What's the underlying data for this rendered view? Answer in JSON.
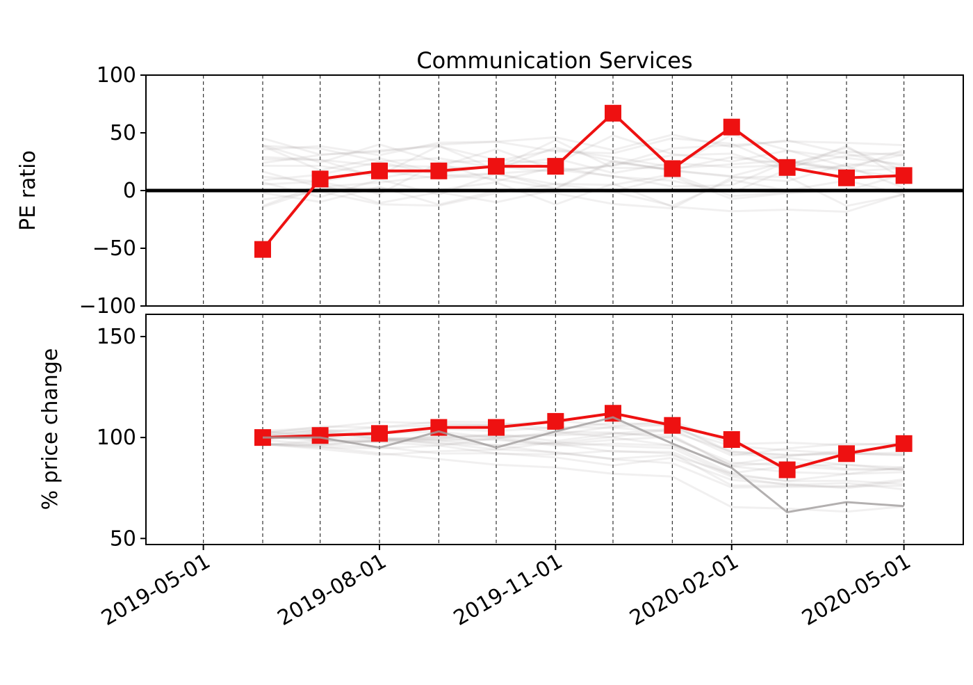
{
  "chart_data": [
    {
      "type": "line",
      "title": "Communication Services",
      "ylabel": "PE ratio",
      "ylim": [
        -100,
        100
      ],
      "yticks": [
        100,
        50,
        0,
        -50,
        -100
      ],
      "ytick_labels": [
        "100",
        "50",
        "0",
        "−50",
        "−100"
      ],
      "zero_line": true,
      "marker": "square",
      "series": [
        {
          "color": "#ee1111",
          "x": [
            "2019-06-01",
            "2019-07-01",
            "2019-08-01",
            "2019-09-01",
            "2019-10-01",
            "2019-11-01",
            "2019-12-01",
            "2020-01-01",
            "2020-02-01",
            "2020-03-01",
            "2020-04-01",
            "2020-05-01"
          ],
          "y": [
            -51,
            10,
            17,
            17,
            21,
            21,
            67,
            19,
            55,
            20,
            11,
            13
          ]
        }
      ],
      "background_series_color": "#a09c9c"
    },
    {
      "type": "line",
      "ylabel": "% price change",
      "ylim": [
        47,
        161
      ],
      "yticks": [
        150,
        100,
        50
      ],
      "ytick_labels": [
        "150",
        "100",
        "50"
      ],
      "marker": "square",
      "series": [
        {
          "color": "#ee1111",
          "x": [
            "2019-06-01",
            "2019-07-01",
            "2019-08-01",
            "2019-09-01",
            "2019-10-01",
            "2019-11-01",
            "2019-12-01",
            "2020-01-01",
            "2020-02-01",
            "2020-03-01",
            "2020-04-01",
            "2020-05-01"
          ],
          "y": [
            100,
            101,
            102,
            105,
            105,
            108,
            112,
            106,
            99,
            84,
            92,
            97
          ]
        },
        {
          "color": "#a09c9c",
          "x": [
            "2019-06-01",
            "2019-07-01",
            "2019-08-01",
            "2019-09-01",
            "2019-10-01",
            "2019-11-01",
            "2019-12-01",
            "2020-01-01",
            "2020-02-01",
            "2020-03-01",
            "2020-04-01",
            "2020-05-01"
          ],
          "y": [
            100,
            100,
            95,
            103,
            95,
            103,
            110,
            97,
            85,
            63,
            68,
            66
          ]
        }
      ]
    }
  ],
  "x_axis": {
    "ticks": [
      "2019-05-01",
      "2019-08-01",
      "2019-11-01",
      "2020-02-01",
      "2020-05-01"
    ],
    "gridlines": [
      "2019-05-01",
      "2019-06-01",
      "2019-07-01",
      "2019-08-01",
      "2019-09-01",
      "2019-10-01",
      "2019-11-01",
      "2019-12-01",
      "2020-01-01",
      "2020-02-01",
      "2020-03-01",
      "2020-04-01",
      "2020-05-01"
    ],
    "range": [
      "2019-04-01",
      "2020-06-01"
    ]
  }
}
